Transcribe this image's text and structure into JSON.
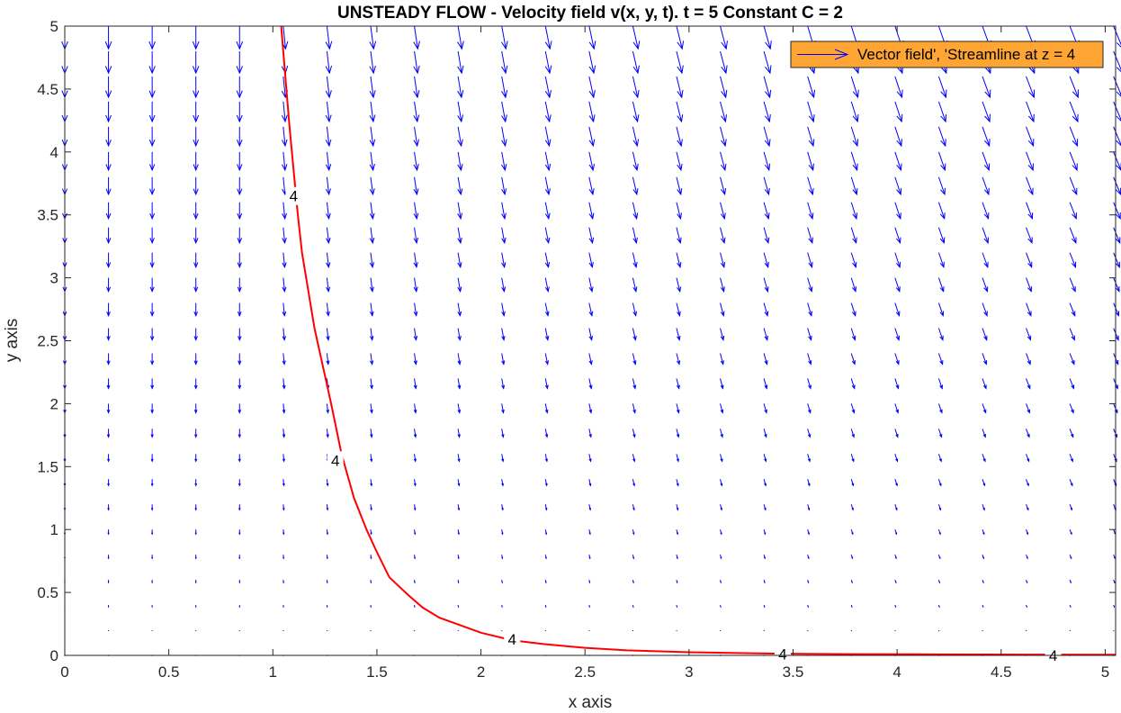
{
  "chart_data": {
    "type": "quiver-contour",
    "title": "UNSTEADY FLOW - Velocity field v(x, y, t). t = 5  Constant C = 2",
    "xlabel": "x axis",
    "ylabel": "y axis",
    "xlim": [
      0,
      5.05
    ],
    "ylim": [
      0,
      5
    ],
    "x_ticks": [
      "0",
      "0.5",
      "1",
      "1.5",
      "2",
      "2.5",
      "3",
      "3.5",
      "4",
      "4.5",
      "5"
    ],
    "y_ticks": [
      "0",
      "0.5",
      "1",
      "1.5",
      "2",
      "2.5",
      "3",
      "3.5",
      "4",
      "4.5",
      "5"
    ],
    "grid": false,
    "legend": {
      "text": "Vector field', 'Streamline at z = 4",
      "placement": "top-right",
      "background": "#FFA533"
    },
    "vector_field": {
      "color": "#0000FF",
      "x_start": 0,
      "x_step": 0.21,
      "x_count": 25,
      "y_start": 0,
      "y_step": 0.2,
      "y_count": 26,
      "u_direction_per_column": [
        0,
        0,
        0,
        0,
        0,
        0.06,
        0.07,
        0.08,
        0.09,
        0.1,
        0.11,
        0.12,
        0.13,
        0.14,
        0.15,
        0.16,
        0.17,
        0.18,
        0.19,
        0.2,
        0.21,
        0.22,
        0.23,
        0.24,
        0.25
      ],
      "v_magnitude_model": "proportional to y"
    },
    "streamline": {
      "level": 4,
      "level_label": "4",
      "color": "#FF0000",
      "x": [
        1.04,
        1.06,
        1.08,
        1.1,
        1.12,
        1.14,
        1.17,
        1.2,
        1.24,
        1.28,
        1.33,
        1.39,
        1.45,
        1.5,
        1.56,
        1.65,
        1.72,
        1.8,
        1.9,
        2.0,
        2.15,
        2.3,
        2.5,
        2.7,
        3.0,
        3.4,
        3.8,
        4.2,
        4.7,
        5.05
      ],
      "y": [
        5.0,
        4.6,
        4.2,
        3.85,
        3.5,
        3.2,
        2.9,
        2.6,
        2.3,
        2.0,
        1.6,
        1.25,
        1.0,
        0.82,
        0.62,
        0.48,
        0.38,
        0.3,
        0.24,
        0.18,
        0.12,
        0.09,
        0.06,
        0.04,
        0.025,
        0.014,
        0.01,
        0.008,
        0.006,
        0.005
      ],
      "labels": [
        {
          "x": 1.1,
          "y": 3.65
        },
        {
          "x": 1.3,
          "y": 1.55
        },
        {
          "x": 2.15,
          "y": 0.13
        },
        {
          "x": 3.45,
          "y": 0.01
        },
        {
          "x": 4.75,
          "y": 0.0
        }
      ]
    }
  }
}
